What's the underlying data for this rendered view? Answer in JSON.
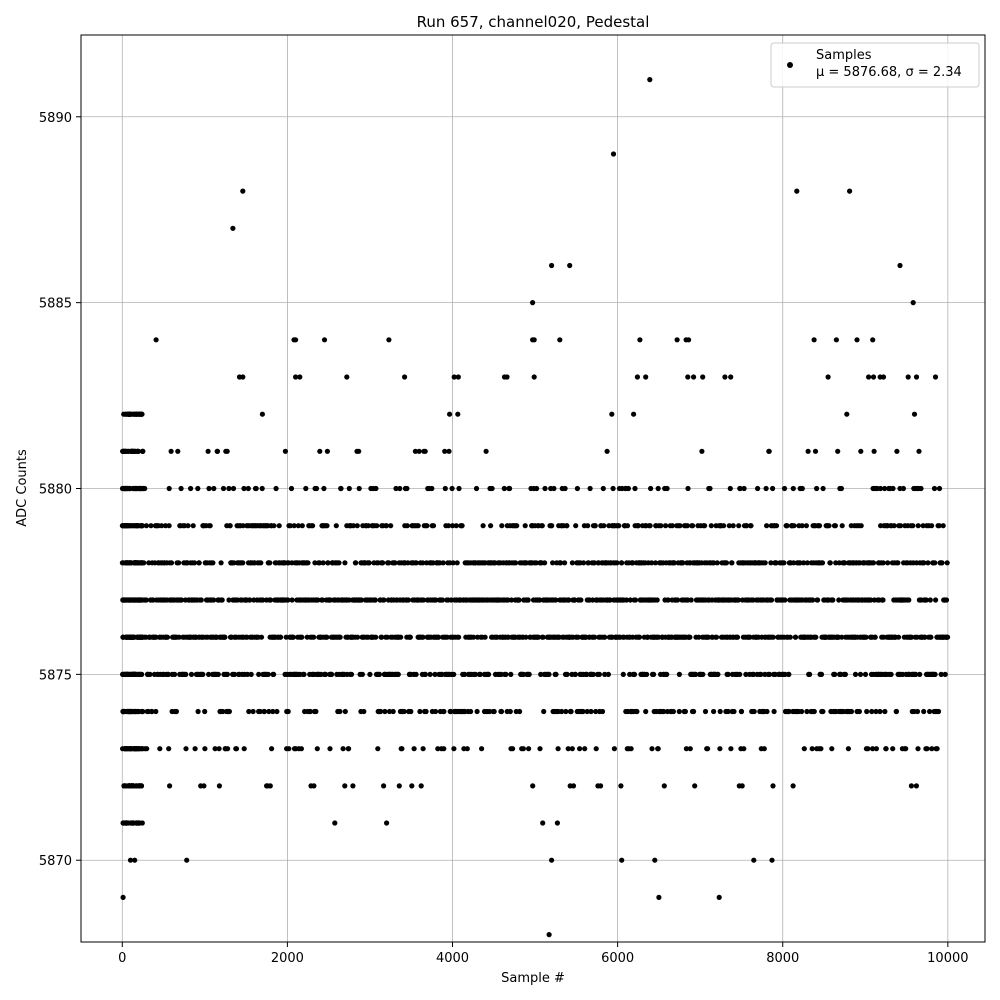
{
  "chart_data": {
    "type": "scatter",
    "title": "Run 657, channel020, Pedestal",
    "xlabel": "Sample #",
    "ylabel": "ADC Counts",
    "xlim": [
      -500,
      10450
    ],
    "ylim": [
      5867.8,
      5892.2
    ],
    "xticks": [
      0,
      2000,
      4000,
      6000,
      8000,
      10000
    ],
    "yticks": [
      5870,
      5875,
      5880,
      5885,
      5890
    ],
    "xtick_labels": [
      "0",
      "2000",
      "4000",
      "6000",
      "8000",
      "10000"
    ],
    "ytick_labels": [
      "5870",
      "5875",
      "5880",
      "5885",
      "5890"
    ],
    "grid": true,
    "legend_position": "top-right",
    "series": [
      {
        "name": "Samples",
        "color": "#000000",
        "marker": "dot",
        "n_samples": 10000,
        "x_range": [
          0,
          9999
        ],
        "mean": 5876.68,
        "sigma": 2.34,
        "dense_levels": [
          5871,
          5872,
          5873,
          5874,
          5875,
          5876,
          5877,
          5878,
          5879,
          5880,
          5881,
          5882
        ],
        "sparse_points": [
          {
            "x": 10,
            "y": 5869
          },
          {
            "x": 100,
            "y": 5870
          },
          {
            "x": 150,
            "y": 5870
          },
          {
            "x": 780,
            "y": 5870
          },
          {
            "x": 5200,
            "y": 5870
          },
          {
            "x": 6050,
            "y": 5870
          },
          {
            "x": 6450,
            "y": 5870
          },
          {
            "x": 7650,
            "y": 5870
          },
          {
            "x": 7870,
            "y": 5870
          },
          {
            "x": 6500,
            "y": 5869
          },
          {
            "x": 7230,
            "y": 5869
          },
          {
            "x": 5170,
            "y": 5868
          },
          {
            "x": 410,
            "y": 5884
          },
          {
            "x": 2080,
            "y": 5884
          },
          {
            "x": 2100,
            "y": 5884
          },
          {
            "x": 2450,
            "y": 5884
          },
          {
            "x": 3230,
            "y": 5884
          },
          {
            "x": 4970,
            "y": 5884
          },
          {
            "x": 4990,
            "y": 5884
          },
          {
            "x": 5300,
            "y": 5884
          },
          {
            "x": 6270,
            "y": 5884
          },
          {
            "x": 6720,
            "y": 5884
          },
          {
            "x": 6830,
            "y": 5884
          },
          {
            "x": 6860,
            "y": 5884
          },
          {
            "x": 8380,
            "y": 5884
          },
          {
            "x": 8650,
            "y": 5884
          },
          {
            "x": 8900,
            "y": 5884
          },
          {
            "x": 9090,
            "y": 5884
          },
          {
            "x": 1420,
            "y": 5883
          },
          {
            "x": 1460,
            "y": 5883
          },
          {
            "x": 2100,
            "y": 5883
          },
          {
            "x": 2150,
            "y": 5883
          },
          {
            "x": 2720,
            "y": 5883
          },
          {
            "x": 3420,
            "y": 5883
          },
          {
            "x": 4020,
            "y": 5883
          },
          {
            "x": 4070,
            "y": 5883
          },
          {
            "x": 4630,
            "y": 5883
          },
          {
            "x": 4660,
            "y": 5883
          },
          {
            "x": 4990,
            "y": 5883
          },
          {
            "x": 6240,
            "y": 5883
          },
          {
            "x": 6340,
            "y": 5883
          },
          {
            "x": 6850,
            "y": 5883
          },
          {
            "x": 6920,
            "y": 5883
          },
          {
            "x": 7030,
            "y": 5883
          },
          {
            "x": 7300,
            "y": 5883
          },
          {
            "x": 7370,
            "y": 5883
          },
          {
            "x": 8550,
            "y": 5883
          },
          {
            "x": 9040,
            "y": 5883
          },
          {
            "x": 9100,
            "y": 5883
          },
          {
            "x": 9180,
            "y": 5883
          },
          {
            "x": 9220,
            "y": 5883
          },
          {
            "x": 9520,
            "y": 5883
          },
          {
            "x": 9620,
            "y": 5883
          },
          {
            "x": 9850,
            "y": 5883
          },
          {
            "x": 1340,
            "y": 5887
          },
          {
            "x": 1460,
            "y": 5888
          },
          {
            "x": 5200,
            "y": 5886
          },
          {
            "x": 5420,
            "y": 5886
          },
          {
            "x": 4970,
            "y": 5885
          },
          {
            "x": 5950,
            "y": 5889
          },
          {
            "x": 6390,
            "y": 5891
          },
          {
            "x": 8170,
            "y": 5888
          },
          {
            "x": 8810,
            "y": 5888
          },
          {
            "x": 9420,
            "y": 5886
          },
          {
            "x": 9580,
            "y": 5885
          }
        ]
      }
    ],
    "legend": {
      "label": "Samples",
      "stats_text": "μ = 5876.68, σ = 2.34"
    }
  }
}
